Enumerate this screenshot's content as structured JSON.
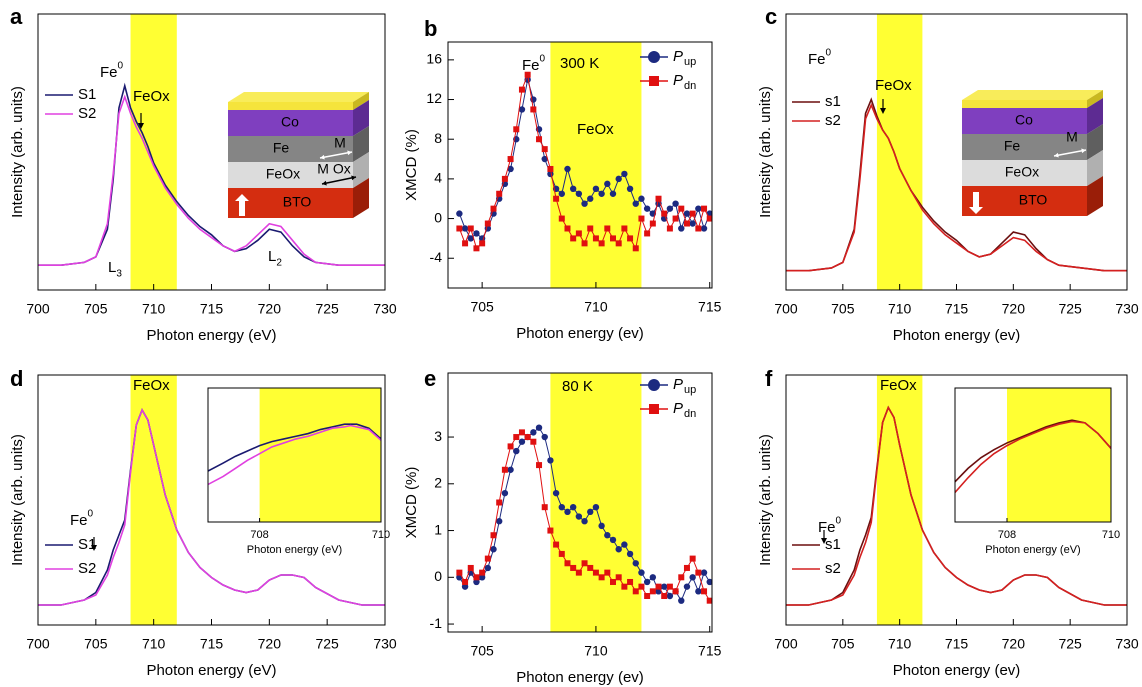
{
  "chart_data": [
    {
      "type": "line",
      "label": "a",
      "xlabel": "Photon energy (eV)",
      "ylabel": "Intensity (arb. units)",
      "xlim": [
        700,
        730
      ],
      "ylim": [
        0,
        1
      ],
      "xticks": [
        700,
        705,
        710,
        715,
        720,
        725,
        730
      ],
      "highlight": [
        708,
        712
      ],
      "highlight_color": "#ffff33",
      "x": [
        700,
        702,
        704,
        705,
        706,
        706.5,
        707,
        707.5,
        708,
        708.5,
        709,
        709.5,
        710,
        711,
        712,
        713,
        714,
        715,
        716,
        717,
        718,
        719,
        720,
        721,
        722,
        723,
        724,
        726,
        728,
        730
      ],
      "series": [
        {
          "name": "S1",
          "color": "#1a1a70",
          "values": [
            0.09,
            0.09,
            0.1,
            0.12,
            0.22,
            0.4,
            0.66,
            0.74,
            0.66,
            0.61,
            0.57,
            0.52,
            0.46,
            0.38,
            0.32,
            0.27,
            0.23,
            0.2,
            0.16,
            0.14,
            0.15,
            0.18,
            0.22,
            0.21,
            0.16,
            0.12,
            0.1,
            0.09,
            0.09,
            0.09
          ]
        },
        {
          "name": "S2",
          "color": "#e040e0",
          "values": [
            0.09,
            0.09,
            0.1,
            0.12,
            0.24,
            0.42,
            0.64,
            0.7,
            0.64,
            0.59,
            0.55,
            0.5,
            0.45,
            0.37,
            0.31,
            0.26,
            0.22,
            0.19,
            0.16,
            0.14,
            0.16,
            0.2,
            0.24,
            0.23,
            0.18,
            0.13,
            0.1,
            0.09,
            0.09,
            0.09
          ]
        }
      ],
      "annotations": [
        {
          "text": "Fe",
          "sup": "0"
        },
        {
          "text": "FeOx"
        },
        {
          "text": "L",
          "sub": "3"
        },
        {
          "text": "L",
          "sub": "2"
        },
        {
          "text": "Co"
        },
        {
          "text": "Fe"
        },
        {
          "text": "M"
        },
        {
          "text": "M Ox"
        },
        {
          "text": "FeOx"
        },
        {
          "text": "BTO"
        }
      ]
    },
    {
      "type": "line",
      "label": "b",
      "xlabel": "Photon energy (ev)",
      "ylabel": "XMCD (%)",
      "xlim": [
        703.5,
        715.1
      ],
      "ylim": [
        -7,
        17.8
      ],
      "xticks": [
        705,
        710,
        715
      ],
      "yticks": [
        -4,
        0,
        4,
        8,
        12,
        16
      ],
      "highlight": [
        708,
        712
      ],
      "highlight_color": "#ffff33",
      "x": [
        704,
        704.25,
        704.5,
        704.75,
        705,
        705.25,
        705.5,
        705.75,
        706,
        706.25,
        706.5,
        706.75,
        707,
        707.25,
        707.5,
        707.75,
        708,
        708.25,
        708.5,
        708.75,
        709,
        709.25,
        709.5,
        709.75,
        710,
        710.25,
        710.5,
        710.75,
        711,
        711.25,
        711.5,
        711.75,
        712,
        712.25,
        712.5,
        712.75,
        713,
        713.25,
        713.5,
        713.75,
        714,
        714.25,
        714.5,
        714.75,
        715
      ],
      "series": [
        {
          "name": "P",
          "name_sub": "up",
          "color": "#1c2a80",
          "marker": "circle",
          "values": [
            0.5,
            -1,
            -2,
            -1.5,
            -2,
            -1,
            0.5,
            2,
            3.5,
            5,
            8,
            11,
            14,
            12,
            9,
            6,
            4.5,
            3,
            2.5,
            5,
            3,
            2.5,
            1.5,
            2,
            3,
            2.5,
            3.5,
            2.5,
            4,
            4.5,
            3,
            1.5,
            2,
            1,
            0.5,
            1.5,
            0,
            1,
            1.5,
            -1,
            0.5,
            -0.5,
            1,
            -1,
            0.5
          ]
        },
        {
          "name": "P",
          "name_sub": "dn",
          "color": "#e01010",
          "marker": "square",
          "values": [
            -1,
            -2.5,
            -1,
            -3,
            -2.5,
            -0.5,
            1,
            2.5,
            4,
            6,
            9,
            13,
            14.5,
            11,
            8,
            7,
            5,
            2,
            0,
            -1,
            -2,
            -1.5,
            -2.5,
            -1,
            -2,
            -2.5,
            -1,
            -2,
            -2.5,
            -1,
            -2,
            -3,
            0,
            -1.5,
            -0.5,
            2,
            0.5,
            -1,
            0,
            1,
            -0.5,
            0.5,
            -1,
            1,
            0
          ]
        }
      ],
      "annotations": [
        {
          "text": "Fe",
          "sup": "0"
        },
        {
          "text": "300 K"
        },
        {
          "text": "FeOx"
        }
      ]
    },
    {
      "type": "line",
      "label": "c",
      "xlabel": "Photon energy (ev)",
      "ylabel": "Intensity (arb. units)",
      "xlim": [
        700,
        730
      ],
      "ylim": [
        0,
        1
      ],
      "xticks": [
        700,
        705,
        710,
        715,
        720,
        725,
        730
      ],
      "highlight": [
        708,
        712
      ],
      "highlight_color": "#ffff33",
      "x": [
        700,
        702,
        704,
        705,
        706,
        706.5,
        707,
        707.5,
        708,
        708.5,
        709,
        709.5,
        710,
        711,
        712,
        713,
        714,
        715,
        716,
        717,
        718,
        719,
        720,
        721,
        722,
        723,
        724,
        726,
        728,
        730
      ],
      "series": [
        {
          "name": "s1",
          "color": "#6b0f0f",
          "values": [
            0.07,
            0.07,
            0.08,
            0.1,
            0.22,
            0.42,
            0.64,
            0.69,
            0.63,
            0.58,
            0.55,
            0.5,
            0.44,
            0.36,
            0.3,
            0.25,
            0.21,
            0.18,
            0.14,
            0.12,
            0.13,
            0.17,
            0.21,
            0.2,
            0.15,
            0.11,
            0.09,
            0.08,
            0.07,
            0.07
          ]
        },
        {
          "name": "s2",
          "color": "#d42020",
          "values": [
            0.07,
            0.07,
            0.08,
            0.1,
            0.21,
            0.4,
            0.62,
            0.67,
            0.62,
            0.58,
            0.55,
            0.5,
            0.44,
            0.36,
            0.29,
            0.24,
            0.2,
            0.17,
            0.14,
            0.12,
            0.13,
            0.16,
            0.19,
            0.18,
            0.14,
            0.11,
            0.09,
            0.08,
            0.07,
            0.07
          ]
        }
      ],
      "annotations": [
        {
          "text": "Fe",
          "sup": "0"
        },
        {
          "text": "FeOx"
        },
        {
          "text": "Co"
        },
        {
          "text": "Fe"
        },
        {
          "text": "M"
        },
        {
          "text": "FeOx"
        },
        {
          "text": "BTO"
        }
      ]
    },
    {
      "type": "line",
      "label": "d",
      "xlabel": "Photon energy (eV)",
      "ylabel": "Intensity (arb. units)",
      "xlim": [
        700,
        730
      ],
      "ylim": [
        0,
        1
      ],
      "xticks": [
        700,
        705,
        710,
        715,
        720,
        725,
        730
      ],
      "highlight": [
        708,
        712
      ],
      "highlight_color": "#ffff33",
      "x": [
        700,
        702,
        704,
        705,
        706,
        706.5,
        707,
        707.5,
        708,
        708.5,
        709,
        709.5,
        710,
        711,
        712,
        713,
        714,
        715,
        716,
        717,
        718,
        719,
        720,
        721,
        722,
        723,
        724,
        726,
        728,
        730
      ],
      "series": [
        {
          "name": "S1",
          "color": "#1a1a70",
          "values": [
            0.08,
            0.08,
            0.1,
            0.13,
            0.22,
            0.3,
            0.36,
            0.42,
            0.62,
            0.8,
            0.86,
            0.82,
            0.72,
            0.52,
            0.38,
            0.29,
            0.23,
            0.19,
            0.16,
            0.14,
            0.13,
            0.14,
            0.18,
            0.2,
            0.2,
            0.19,
            0.15,
            0.1,
            0.08,
            0.08
          ]
        },
        {
          "name": "S2",
          "color": "#e040e0",
          "values": [
            0.08,
            0.08,
            0.1,
            0.12,
            0.2,
            0.27,
            0.33,
            0.4,
            0.61,
            0.8,
            0.86,
            0.82,
            0.72,
            0.52,
            0.38,
            0.29,
            0.23,
            0.19,
            0.16,
            0.14,
            0.13,
            0.14,
            0.18,
            0.2,
            0.2,
            0.19,
            0.15,
            0.1,
            0.08,
            0.08
          ]
        }
      ],
      "annotations": [
        {
          "text": "FeOx"
        },
        {
          "text": "Fe",
          "sup": "0"
        }
      ]
    },
    {
      "type": "line",
      "label": "e",
      "xlabel": "Photon energy (ev)",
      "ylabel": "XMCD (%)",
      "xlim": [
        703.5,
        715.1
      ],
      "ylim": [
        -1.17,
        4.37
      ],
      "xticks": [
        705,
        710,
        715
      ],
      "yticks": [
        -1,
        0,
        1,
        2,
        3
      ],
      "highlight": [
        708,
        712
      ],
      "highlight_color": "#ffff33",
      "x": [
        704,
        704.25,
        704.5,
        704.75,
        705,
        705.25,
        705.5,
        705.75,
        706,
        706.25,
        706.5,
        706.75,
        707,
        707.25,
        707.5,
        707.75,
        708,
        708.25,
        708.5,
        708.75,
        709,
        709.25,
        709.5,
        709.75,
        710,
        710.25,
        710.5,
        710.75,
        711,
        711.25,
        711.5,
        711.75,
        712,
        712.25,
        712.5,
        712.75,
        713,
        713.25,
        713.5,
        713.75,
        714,
        714.25,
        714.5,
        714.75,
        715
      ],
      "series": [
        {
          "name": "P",
          "name_sub": "up",
          "color": "#1c2a80",
          "marker": "circle",
          "values": [
            0,
            -0.2,
            0.1,
            -0.1,
            0,
            0.2,
            0.6,
            1.2,
            1.8,
            2.3,
            2.7,
            2.9,
            3.0,
            3.1,
            3.2,
            3.0,
            2.5,
            1.8,
            1.5,
            1.4,
            1.5,
            1.3,
            1.2,
            1.4,
            1.5,
            1.1,
            0.9,
            0.8,
            0.6,
            0.7,
            0.5,
            0.3,
            0.1,
            -0.1,
            0,
            -0.3,
            -0.2,
            -0.4,
            -0.3,
            -0.5,
            -0.2,
            0,
            -0.3,
            0.1,
            -0.1
          ]
        },
        {
          "name": "P",
          "name_sub": "dn",
          "color": "#e01010",
          "marker": "square",
          "values": [
            0.1,
            -0.1,
            0.2,
            0,
            0.1,
            0.4,
            0.9,
            1.6,
            2.3,
            2.8,
            3.0,
            3.1,
            3.0,
            2.9,
            2.4,
            1.5,
            1.0,
            0.7,
            0.5,
            0.3,
            0.2,
            0.1,
            0.3,
            0.2,
            0.1,
            0,
            0.1,
            -0.1,
            0,
            -0.2,
            -0.1,
            -0.3,
            -0.2,
            -0.4,
            -0.3,
            -0.2,
            -0.4,
            -0.2,
            -0.3,
            0,
            0.2,
            0.4,
            0.1,
            -0.3,
            -0.5
          ]
        }
      ],
      "annotations": [
        {
          "text": "80 K"
        }
      ]
    },
    {
      "type": "line",
      "label": "f",
      "xlabel": "Photon energy (ev)",
      "ylabel": "Intensity (arb. units)",
      "xlim": [
        700,
        730
      ],
      "ylim": [
        0,
        1
      ],
      "xticks": [
        700,
        705,
        710,
        715,
        720,
        725,
        730
      ],
      "highlight": [
        708,
        712
      ],
      "highlight_color": "#ffff33",
      "x": [
        700,
        702,
        704,
        705,
        706,
        706.5,
        707,
        707.5,
        708,
        708.5,
        709,
        709.5,
        710,
        711,
        712,
        713,
        714,
        715,
        716,
        717,
        718,
        719,
        720,
        721,
        722,
        723,
        724,
        726,
        728,
        730
      ],
      "series": [
        {
          "name": "s1",
          "color": "#6b0f0f",
          "values": [
            0.08,
            0.08,
            0.1,
            0.13,
            0.22,
            0.3,
            0.36,
            0.43,
            0.63,
            0.81,
            0.87,
            0.83,
            0.72,
            0.52,
            0.38,
            0.29,
            0.23,
            0.19,
            0.16,
            0.14,
            0.13,
            0.14,
            0.18,
            0.2,
            0.2,
            0.19,
            0.15,
            0.1,
            0.08,
            0.08
          ]
        },
        {
          "name": "s2",
          "color": "#d42020",
          "values": [
            0.08,
            0.08,
            0.1,
            0.12,
            0.2,
            0.27,
            0.33,
            0.41,
            0.62,
            0.81,
            0.87,
            0.83,
            0.72,
            0.52,
            0.38,
            0.29,
            0.23,
            0.19,
            0.16,
            0.14,
            0.13,
            0.14,
            0.18,
            0.2,
            0.2,
            0.19,
            0.15,
            0.1,
            0.08,
            0.08
          ]
        }
      ],
      "annotations": [
        {
          "text": "FeOx"
        },
        {
          "text": "Fe",
          "sup": "0"
        }
      ]
    },
    {
      "type": "line",
      "xlabel": "Photon energy (eV)",
      "xlim": [
        707.15,
        710
      ],
      "ylim": [
        0,
        1
      ],
      "xticks": [
        708,
        710
      ],
      "highlight": [
        708,
        710
      ],
      "highlight_color": "#ffff33",
      "x": [
        707.15,
        707.4,
        707.6,
        707.8,
        708,
        708.2,
        708.4,
        708.6,
        708.8,
        709,
        709.2,
        709.4,
        709.5,
        709.6,
        709.8,
        710
      ],
      "series": [
        {
          "color": "#1a1a70",
          "values": [
            0.38,
            0.44,
            0.49,
            0.53,
            0.57,
            0.6,
            0.62,
            0.64,
            0.66,
            0.69,
            0.71,
            0.73,
            0.73,
            0.73,
            0.7,
            0.62
          ]
        },
        {
          "color": "#e040e0",
          "values": [
            0.28,
            0.34,
            0.4,
            0.46,
            0.51,
            0.56,
            0.59,
            0.62,
            0.64,
            0.67,
            0.7,
            0.71,
            0.72,
            0.71,
            0.69,
            0.61
          ]
        }
      ]
    },
    {
      "type": "line",
      "xlabel": "Photon energy (eV)",
      "xlim": [
        707,
        710
      ],
      "ylim": [
        0,
        1
      ],
      "xticks": [
        708,
        710
      ],
      "highlight": [
        708,
        710
      ],
      "highlight_color": "#ffff33",
      "x": [
        707,
        707.25,
        707.5,
        707.75,
        708,
        708.25,
        708.5,
        708.75,
        709,
        709.25,
        709.5,
        709.75,
        710
      ],
      "series": [
        {
          "color": "#6b0f0f",
          "values": [
            0.3,
            0.4,
            0.48,
            0.54,
            0.59,
            0.63,
            0.67,
            0.71,
            0.74,
            0.76,
            0.74,
            0.66,
            0.55
          ]
        },
        {
          "color": "#d42020",
          "values": [
            0.22,
            0.33,
            0.43,
            0.51,
            0.57,
            0.62,
            0.66,
            0.7,
            0.73,
            0.75,
            0.74,
            0.66,
            0.55
          ]
        }
      ]
    }
  ]
}
